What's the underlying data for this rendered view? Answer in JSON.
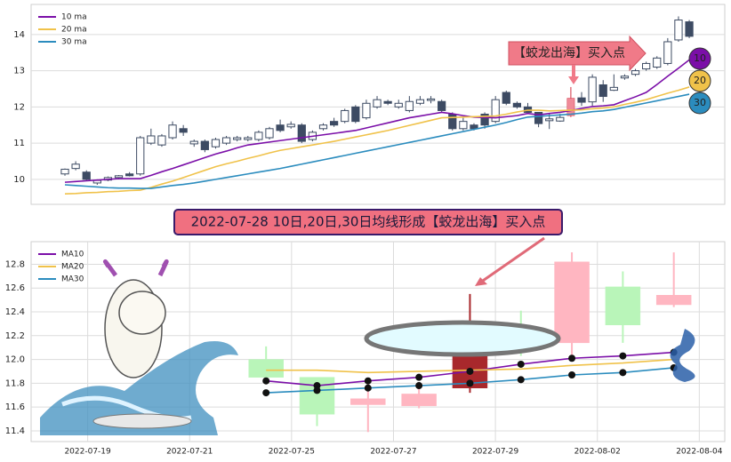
{
  "chart_data": [
    {
      "type": "candlestick",
      "open": [
        10.15,
        10.3,
        10.2,
        9.9,
        9.98,
        10.05,
        10.15,
        10.15,
        11.0,
        10.95,
        11.15,
        11.4,
        10.98,
        11.05,
        10.9,
        11.0,
        11.1,
        11.1,
        11.1,
        11.15,
        11.5,
        11.45,
        11.5,
        11.1,
        11.4,
        11.6,
        11.6,
        12.0,
        11.7,
        12.0,
        12.15,
        12.0,
        11.9,
        12.1,
        12.18,
        12.15,
        11.8,
        11.4,
        11.5,
        11.8,
        11.6,
        12.4,
        12.1,
        12.0,
        11.85,
        11.62,
        11.61,
        11.76,
        12.25,
        12.14,
        12.61,
        12.46,
        12.8,
        12.9,
        13.05,
        13.1,
        13.2,
        13.85,
        14.35
      ],
      "high": [
        10.3,
        10.5,
        10.25,
        10.0,
        10.08,
        10.12,
        10.2,
        11.2,
        11.4,
        11.25,
        11.6,
        11.5,
        11.1,
        11.1,
        11.15,
        11.2,
        11.2,
        11.2,
        11.35,
        11.45,
        11.65,
        11.6,
        11.55,
        11.35,
        11.55,
        11.7,
        11.95,
        12.05,
        12.2,
        12.3,
        12.2,
        12.2,
        12.3,
        12.3,
        12.3,
        12.2,
        11.85,
        11.7,
        11.55,
        11.85,
        12.3,
        12.45,
        12.15,
        12.11,
        11.85,
        11.81,
        11.81,
        12.55,
        12.41,
        12.9,
        12.74,
        12.9,
        12.9,
        13.05,
        13.25,
        13.4,
        13.9,
        14.5,
        14.4
      ],
      "low": [
        10.1,
        10.25,
        9.95,
        9.85,
        9.95,
        10.0,
        10.08,
        10.1,
        10.95,
        10.9,
        11.1,
        11.2,
        10.9,
        10.75,
        10.85,
        10.95,
        11.05,
        11.05,
        11.05,
        11.1,
        11.3,
        11.4,
        11.0,
        11.05,
        11.35,
        11.45,
        11.55,
        11.55,
        11.65,
        11.95,
        12.05,
        11.95,
        11.85,
        12.05,
        12.1,
        11.85,
        11.35,
        11.35,
        11.35,
        11.4,
        11.55,
        12.05,
        11.95,
        11.85,
        11.44,
        11.39,
        11.59,
        11.72,
        12.03,
        12.03,
        12.14,
        12.44,
        12.75,
        12.85,
        13.0,
        13.05,
        13.15,
        13.8,
        13.9
      ],
      "close": [
        10.28,
        10.42,
        10.0,
        9.97,
        10.05,
        10.1,
        10.1,
        11.15,
        11.2,
        11.2,
        11.5,
        11.3,
        11.05,
        10.82,
        11.1,
        11.15,
        11.15,
        11.15,
        11.3,
        11.4,
        11.35,
        11.52,
        11.05,
        11.3,
        11.5,
        11.5,
        11.9,
        11.6,
        12.1,
        12.2,
        12.1,
        12.1,
        12.15,
        12.2,
        12.22,
        11.9,
        11.4,
        11.6,
        11.4,
        11.5,
        12.2,
        12.1,
        12.0,
        11.85,
        11.54,
        11.67,
        11.71,
        12.24,
        12.13,
        12.82,
        12.29,
        12.54,
        12.85,
        13.0,
        13.2,
        13.35,
        13.8,
        14.4,
        13.95
      ],
      "series": [
        {
          "name": "10 ma",
          "color": "#7b0fa8",
          "values": [
            9.92,
            9.94,
            9.96,
            9.98,
            10.0,
            10.02,
            10.02,
            10.02,
            10.11,
            10.21,
            10.3,
            10.4,
            10.5,
            10.6,
            10.7,
            10.78,
            10.87,
            10.95,
            10.99,
            11.03,
            11.07,
            11.11,
            11.15,
            11.19,
            11.23,
            11.27,
            11.31,
            11.35,
            11.42,
            11.49,
            11.56,
            11.63,
            11.7,
            11.75,
            11.8,
            11.85,
            11.81,
            11.76,
            11.72,
            11.71,
            11.7,
            11.73,
            11.76,
            11.82,
            11.78,
            11.82,
            11.85,
            11.9,
            11.96,
            12.01,
            12.03,
            12.06,
            12.17,
            12.28,
            12.4,
            12.62,
            12.85,
            13.07,
            13.3
          ]
        },
        {
          "name": "20 ma",
          "color": "#f0c24a",
          "values": [
            9.6,
            9.61,
            9.63,
            9.64,
            9.66,
            9.67,
            9.69,
            9.7,
            9.78,
            9.87,
            9.95,
            10.05,
            10.15,
            10.25,
            10.35,
            10.43,
            10.5,
            10.58,
            10.65,
            10.73,
            10.8,
            10.85,
            10.9,
            10.95,
            11.0,
            11.05,
            11.11,
            11.17,
            11.23,
            11.29,
            11.35,
            11.42,
            11.49,
            11.56,
            11.63,
            11.7,
            11.71,
            11.72,
            11.73,
            11.74,
            11.75,
            11.8,
            11.86,
            11.91,
            11.91,
            11.89,
            11.9,
            11.91,
            11.92,
            11.95,
            11.97,
            12.0,
            12.07,
            12.13,
            12.2,
            12.29,
            12.38,
            12.46,
            12.55
          ]
        },
        {
          "name": "30 ma",
          "color": "#2b8cbe",
          "values": [
            9.85,
            9.83,
            9.81,
            9.79,
            9.77,
            9.76,
            9.76,
            9.75,
            9.75,
            9.79,
            9.83,
            9.86,
            9.9,
            9.95,
            10.0,
            10.05,
            10.1,
            10.15,
            10.2,
            10.25,
            10.3,
            10.36,
            10.42,
            10.48,
            10.54,
            10.6,
            10.66,
            10.72,
            10.78,
            10.84,
            10.9,
            10.96,
            11.02,
            11.08,
            11.14,
            11.2,
            11.26,
            11.32,
            11.38,
            11.44,
            11.5,
            11.57,
            11.65,
            11.72,
            11.74,
            11.76,
            11.78,
            11.8,
            11.83,
            11.87,
            11.89,
            11.93,
            11.99,
            12.05,
            12.11,
            12.17,
            12.23,
            12.29,
            12.35
          ]
        }
      ],
      "xlim": [
        -3.14,
        61.3
      ],
      "ylim": [
        9.31,
        14.83
      ],
      "yticks": [
        10,
        11,
        12,
        13,
        14
      ],
      "grid": true,
      "legend": "upper left",
      "up_color": "#ffffff",
      "down_color": "#3d4b63",
      "highlight_index": 47,
      "highlight_color": "#f08a98",
      "end_labels": [
        "10",
        "20",
        "30"
      ],
      "annotation": "【蛟龙出海】买入点"
    },
    {
      "type": "candlestick",
      "title": "2022-07-28 10日,20日,30日均线形成【蛟龙出海】买入点",
      "x": [
        0,
        1,
        2,
        3,
        4,
        5,
        6,
        7,
        8
      ],
      "open": [
        12.0,
        11.85,
        11.62,
        11.61,
        11.76,
        12.25,
        12.14,
        12.61,
        12.46
      ],
      "high": [
        12.11,
        11.85,
        11.81,
        11.81,
        12.55,
        12.41,
        12.9,
        12.74,
        12.9
      ],
      "low": [
        11.85,
        11.44,
        11.39,
        11.59,
        11.72,
        12.03,
        12.03,
        12.14,
        12.44
      ],
      "close": [
        11.85,
        11.54,
        11.67,
        11.71,
        12.24,
        12.13,
        12.82,
        12.29,
        12.54
      ],
      "series": [
        {
          "name": "MA10",
          "color": "#7b0fa8",
          "values": [
            11.82,
            11.78,
            11.82,
            11.85,
            11.9,
            11.96,
            12.01,
            12.03,
            12.06
          ]
        },
        {
          "name": "MA20",
          "color": "#f0c24a",
          "values": [
            11.91,
            11.91,
            11.89,
            11.9,
            11.91,
            11.92,
            11.95,
            11.97,
            12.0
          ]
        },
        {
          "name": "MA30",
          "color": "#2b8cbe",
          "values": [
            11.72,
            11.74,
            11.76,
            11.78,
            11.8,
            11.83,
            11.87,
            11.89,
            11.93
          ]
        }
      ],
      "xlim": [
        -4.61,
        9.0
      ],
      "ylim": [
        11.31,
        12.99
      ],
      "xticks": [
        {
          "value": -3.5,
          "label": "2022-07-19"
        },
        {
          "value": -1.5,
          "label": "2022-07-21"
        },
        {
          "value": 0.5,
          "label": "2022-07-25"
        },
        {
          "value": 2.5,
          "label": "2022-07-27"
        },
        {
          "value": 4.5,
          "label": "2022-07-29"
        },
        {
          "value": 6.5,
          "label": "2022-08-02"
        },
        {
          "value": 8.5,
          "label": "2022-08-04"
        }
      ],
      "yticks": [
        11.4,
        11.6,
        11.8,
        {
          "value": 12,
          "label": "12.0"
        },
        12.2,
        12.4,
        12.6,
        12.8
      ],
      "grid": true,
      "legend": "upper left",
      "up_color": "#ffb6c1",
      "down_color": "#b9f5b9",
      "highlight_index": 4,
      "highlight_color": "#a8282c"
    }
  ]
}
